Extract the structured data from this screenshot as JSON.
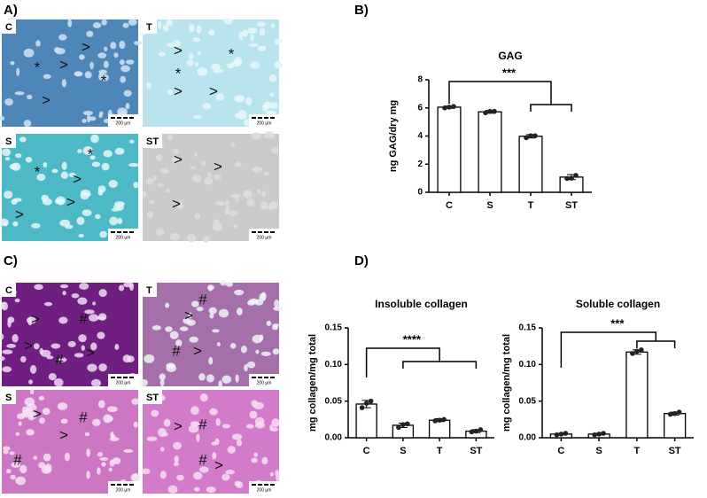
{
  "panels": [
    "A)",
    "B)",
    "C)",
    "D)"
  ],
  "images": [
    {
      "label": "C",
      "scale_bar": "200 µm",
      "markers": [
        ">",
        "*",
        ">",
        "*",
        ">"
      ]
    },
    {
      "label": "T",
      "scale_bar": "200 µm",
      "markers": [
        ">",
        "*",
        "*",
        ">",
        ">"
      ]
    },
    {
      "label": "S",
      "scale_bar": "200 µm",
      "markers": [
        "*",
        "*",
        ">",
        ">",
        ">"
      ]
    },
    {
      "label": "ST",
      "scale_bar": "200 µm",
      "markers": [
        ">",
        ">",
        ">"
      ]
    },
    {
      "label": "C",
      "scale_bar": "200 µm",
      "markers": [
        ">",
        "#",
        ">",
        "#",
        ">"
      ]
    },
    {
      "label": "T",
      "scale_bar": "200 µm",
      "markers": [
        "#",
        ">",
        "#",
        ">"
      ]
    },
    {
      "label": "S",
      "scale_bar": "200 µm",
      "markers": [
        ">",
        "#",
        ">",
        "#"
      ]
    },
    {
      "label": "ST",
      "scale_bar": "200 µm",
      "markers": [
        ">",
        "#",
        "#",
        ">"
      ]
    }
  ],
  "chart_data": [
    {
      "type": "bar",
      "title": "GAG",
      "y_label": "ng GAG/dry mg",
      "categories": [
        "C",
        "S",
        "T",
        "ST"
      ],
      "values": [
        6.05,
        5.72,
        3.98,
        1.08
      ],
      "errors": [
        0.08,
        0.1,
        0.12,
        0.18
      ],
      "points": [
        [
          6.0,
          6.05,
          6.1
        ],
        [
          5.65,
          5.75,
          5.75
        ],
        [
          3.88,
          4.02,
          4.02
        ],
        [
          0.98,
          1.0,
          1.2
        ]
      ],
      "significance": "***",
      "color": "#ffffff",
      "ylim": [
        0,
        8
      ],
      "yticks": [
        0,
        2,
        4,
        6,
        8
      ]
    },
    {
      "type": "bar",
      "title": "Insoluble collagen",
      "y_label": "mg collagen/mg total",
      "categories": [
        "C",
        "S",
        "T",
        "ST"
      ],
      "values": [
        0.046,
        0.017,
        0.024,
        0.009
      ],
      "errors": [
        0.005,
        0.003,
        0.002,
        0.002
      ],
      "points": [
        [
          0.041,
          0.047,
          0.05
        ],
        [
          0.014,
          0.018,
          0.019
        ],
        [
          0.023,
          0.024,
          0.025
        ],
        [
          0.008,
          0.009,
          0.011
        ]
      ],
      "significance": "****",
      "color": "#ffffff",
      "ylim": [
        0,
        0.15
      ],
      "yticks": [
        {
          "value": 0,
          "label": "0.00"
        },
        {
          "value": 0.05,
          "label": "0.05"
        },
        {
          "value": 0.1,
          "label": "0.10"
        },
        {
          "value": 0.15,
          "label": "0.15"
        }
      ]
    },
    {
      "type": "bar",
      "title": "Soluble collagen",
      "y_label": "mg collagen/mg total",
      "categories": [
        "C",
        "S",
        "T",
        "ST"
      ],
      "values": [
        0.005,
        0.005,
        0.117,
        0.033
      ],
      "errors": [
        0.001,
        0.001,
        0.003,
        0.002
      ],
      "points": [
        [
          0.004,
          0.005,
          0.006
        ],
        [
          0.004,
          0.005,
          0.006
        ],
        [
          0.115,
          0.118,
          0.12
        ],
        [
          0.032,
          0.033,
          0.035
        ]
      ],
      "significance": "***",
      "color": "#ffffff",
      "ylim": [
        0,
        0.15
      ],
      "yticks": [
        {
          "value": 0,
          "label": "0.00"
        },
        {
          "value": 0.05,
          "label": "0.05"
        },
        {
          "value": 0.1,
          "label": "0.10"
        },
        {
          "value": 0.15,
          "label": "0.15"
        }
      ]
    }
  ]
}
